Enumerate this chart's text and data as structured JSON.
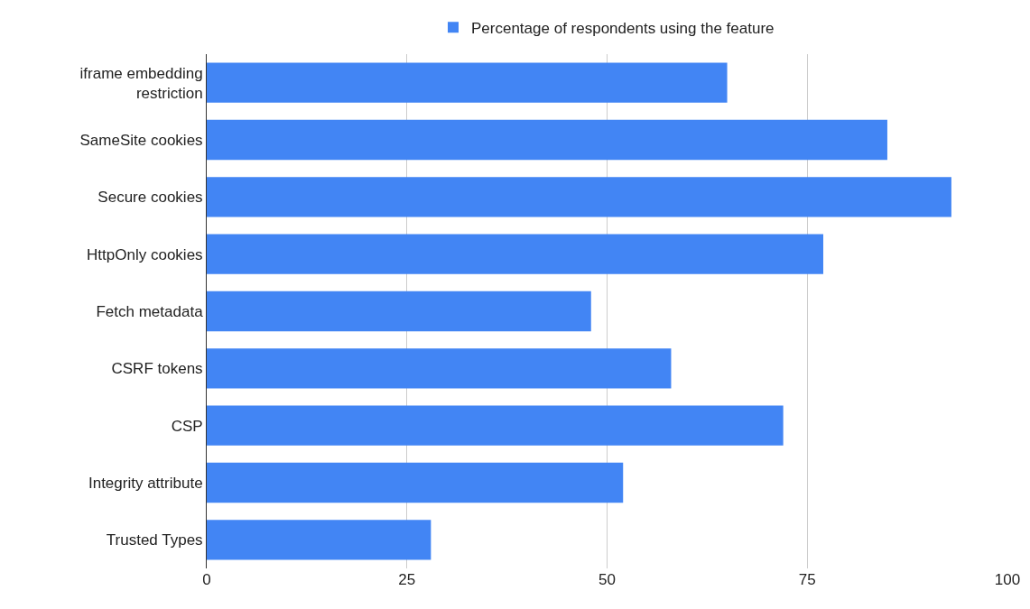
{
  "chart_data": {
    "type": "bar",
    "orientation": "horizontal",
    "categories": [
      "iframe embedding restriction",
      "SameSite cookies",
      "Secure cookies",
      "HttpOnly cookies",
      "Fetch metadata",
      "CSRF tokens",
      "CSP",
      "Integrity attribute",
      "Trusted Types"
    ],
    "series": [
      {
        "name": "Percentage of respondents using the feature",
        "color": "#4285f4",
        "values": [
          65,
          85,
          93,
          77,
          48,
          58,
          72,
          52,
          28
        ]
      }
    ],
    "xlim": [
      0,
      100
    ],
    "xticks": [
      0,
      25,
      50,
      75,
      100
    ],
    "grid": "x",
    "legend": "top"
  }
}
